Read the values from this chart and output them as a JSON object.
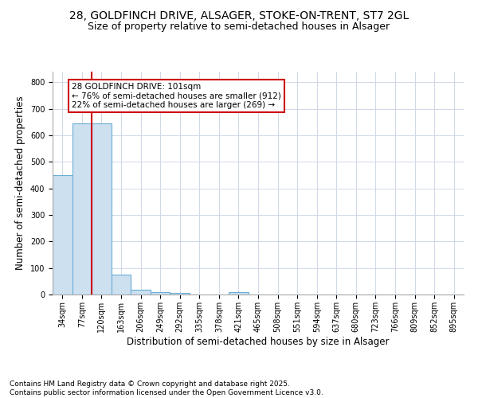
{
  "title_line1": "28, GOLDFINCH DRIVE, ALSAGER, STOKE-ON-TRENT, ST7 2GL",
  "title_line2": "Size of property relative to semi-detached houses in Alsager",
  "xlabel": "Distribution of semi-detached houses by size in Alsager",
  "ylabel": "Number of semi-detached properties",
  "categories": [
    "34sqm",
    "77sqm",
    "120sqm",
    "163sqm",
    "206sqm",
    "249sqm",
    "292sqm",
    "335sqm",
    "378sqm",
    "421sqm",
    "465sqm",
    "508sqm",
    "551sqm",
    "594sqm",
    "637sqm",
    "680sqm",
    "723sqm",
    "766sqm",
    "809sqm",
    "852sqm",
    "895sqm"
  ],
  "values": [
    450,
    645,
    645,
    75,
    18,
    10,
    5,
    0,
    0,
    10,
    0,
    0,
    0,
    0,
    0,
    0,
    0,
    0,
    0,
    0,
    0
  ],
  "bar_color": "#cce0f0",
  "bar_edge_color": "#6baed6",
  "vline_index": 1.5,
  "vline_color": "#cc0000",
  "annotation_text": "28 GOLDFINCH DRIVE: 101sqm\n← 76% of semi-detached houses are smaller (912)\n22% of semi-detached houses are larger (269) →",
  "annotation_box_color": "#ffffff",
  "annotation_box_edge_color": "#cc0000",
  "ylim": [
    0,
    840
  ],
  "yticks": [
    0,
    100,
    200,
    300,
    400,
    500,
    600,
    700,
    800
  ],
  "footer_text": "Contains HM Land Registry data © Crown copyright and database right 2025.\nContains public sector information licensed under the Open Government Licence v3.0.",
  "bg_color": "#ffffff",
  "grid_color": "#d0d8e8",
  "title_fontsize": 10,
  "subtitle_fontsize": 9,
  "axis_fontsize": 8.5,
  "tick_fontsize": 7,
  "footer_fontsize": 6.5,
  "annot_fontsize": 7.5
}
